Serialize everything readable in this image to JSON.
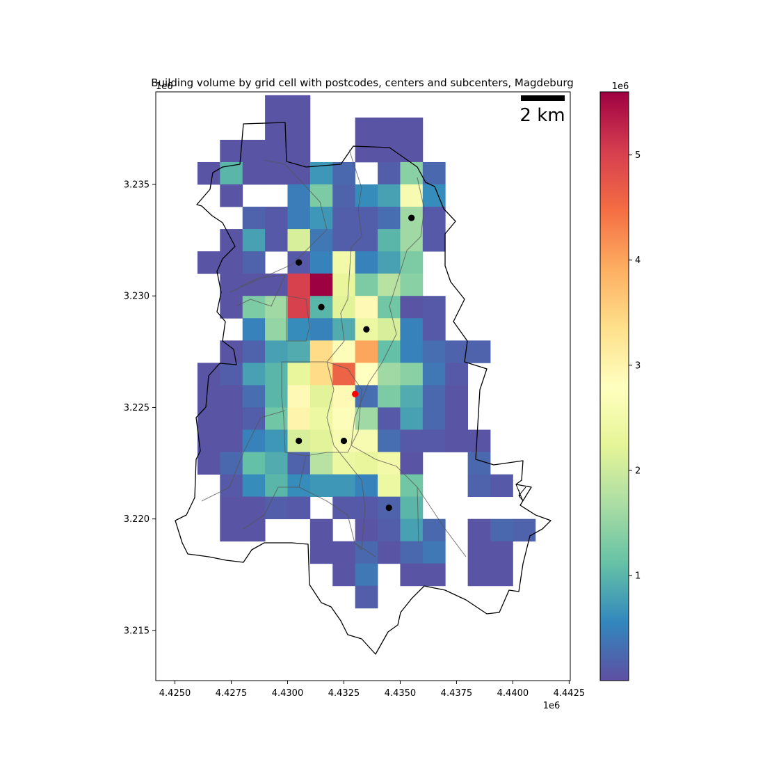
{
  "chart_data": {
    "type": "heatmap",
    "title": "Building volume by grid cell with postcodes, centers and subcenters, Magdeburg",
    "xlabel": "",
    "ylabel": "",
    "x_offset_label": "1e6",
    "y_offset_label": "1e6",
    "xlim": [
      4.42415,
      4.44255
    ],
    "ylim": [
      3.21275,
      3.23915
    ],
    "x_ticks": [
      {
        "value": 4.425,
        "label": "4.4250"
      },
      {
        "value": 4.4275,
        "label": "4.4275"
      },
      {
        "value": 4.43,
        "label": "4.4300"
      },
      {
        "value": 4.4325,
        "label": "4.4325"
      },
      {
        "value": 4.435,
        "label": "4.4350"
      },
      {
        "value": 4.4375,
        "label": "4.4375"
      },
      {
        "value": 4.44,
        "label": "4.4400"
      },
      {
        "value": 4.4425,
        "label": "4.4425"
      }
    ],
    "y_ticks": [
      {
        "value": 3.215,
        "label": "3.215"
      },
      {
        "value": 3.22,
        "label": "3.220"
      },
      {
        "value": 3.225,
        "label": "3.225"
      },
      {
        "value": 3.23,
        "label": "3.230"
      },
      {
        "value": 3.235,
        "label": "3.235"
      }
    ],
    "grid": false,
    "cell_size": 0.001,
    "grid_origin": {
      "x": 4.426,
      "y": 3.215
    },
    "values": [
      {
        "row": 23,
        "cols": [
          {
            "c": 3,
            "v": 0.05
          },
          {
            "c": 4,
            "v": 0.05
          }
        ]
      },
      {
        "row": 22,
        "cols": [
          {
            "c": 3,
            "v": 0.05
          },
          {
            "c": 4,
            "v": 0.05
          },
          {
            "c": 7,
            "v": 0.05
          },
          {
            "c": 8,
            "v": 0.05
          },
          {
            "c": 9,
            "v": 0.05
          }
        ]
      },
      {
        "row": 21,
        "cols": [
          {
            "c": 1,
            "v": 0.05
          },
          {
            "c": 2,
            "v": 0.05
          },
          {
            "c": 3,
            "v": 0.05
          },
          {
            "c": 4,
            "v": 0.05
          },
          {
            "c": 7,
            "v": 0.05
          },
          {
            "c": 8,
            "v": 0.05
          },
          {
            "c": 9,
            "v": 0.05
          }
        ]
      },
      {
        "row": 20,
        "cols": [
          {
            "c": 0,
            "v": 0.05
          },
          {
            "c": 1,
            "v": 1.0
          },
          {
            "c": 2,
            "v": 0.05
          },
          {
            "c": 3,
            "v": 0.05
          },
          {
            "c": 4,
            "v": 0.05
          },
          {
            "c": 5,
            "v": 0.7
          },
          {
            "c": 6,
            "v": 0.25
          },
          {
            "c": 8,
            "v": 0.15
          },
          {
            "c": 9,
            "v": 1.4
          },
          {
            "c": 10,
            "v": 0.25
          }
        ]
      },
      {
        "row": 19,
        "cols": [
          {
            "c": 1,
            "v": 0.05
          },
          {
            "c": 4,
            "v": 0.45
          },
          {
            "c": 5,
            "v": 1.3
          },
          {
            "c": 6,
            "v": 0.2
          },
          {
            "c": 7,
            "v": 0.6
          },
          {
            "c": 8,
            "v": 0.8
          },
          {
            "c": 9,
            "v": 2.6
          },
          {
            "c": 10,
            "v": 0.6
          }
        ]
      },
      {
        "row": 18,
        "cols": [
          {
            "c": 2,
            "v": 0.2
          },
          {
            "c": 3,
            "v": 0.1
          },
          {
            "c": 4,
            "v": 0.45
          },
          {
            "c": 5,
            "v": 0.7
          },
          {
            "c": 6,
            "v": 0.15
          },
          {
            "c": 7,
            "v": 0.15
          },
          {
            "c": 8,
            "v": 0.3
          },
          {
            "c": 9,
            "v": 1.6
          },
          {
            "c": 10,
            "v": 0.1
          }
        ]
      },
      {
        "row": 17,
        "cols": [
          {
            "c": 1,
            "v": 0.05
          },
          {
            "c": 2,
            "v": 0.8
          },
          {
            "c": 3,
            "v": 0.1
          },
          {
            "c": 4,
            "v": 2.1
          },
          {
            "c": 5,
            "v": 0.4
          },
          {
            "c": 6,
            "v": 0.15
          },
          {
            "c": 7,
            "v": 0.15
          },
          {
            "c": 8,
            "v": 1.0
          },
          {
            "c": 9,
            "v": 1.6
          },
          {
            "c": 10,
            "v": 0.1
          }
        ]
      },
      {
        "row": 16,
        "cols": [
          {
            "c": 0,
            "v": 0.05
          },
          {
            "c": 1,
            "v": 0.05
          },
          {
            "c": 2,
            "v": 0.2
          },
          {
            "c": 4,
            "v": 0.1
          },
          {
            "c": 5,
            "v": 0.5
          },
          {
            "c": 6,
            "v": 2.5
          },
          {
            "c": 7,
            "v": 0.5
          },
          {
            "c": 8,
            "v": 0.8
          },
          {
            "c": 9,
            "v": 1.3
          }
        ]
      },
      {
        "row": 15,
        "cols": [
          {
            "c": 1,
            "v": 0.05
          },
          {
            "c": 2,
            "v": 0.05
          },
          {
            "c": 3,
            "v": 0.05
          },
          {
            "c": 4,
            "v": 5.0
          },
          {
            "c": 5,
            "v": 5.6
          },
          {
            "c": 6,
            "v": 2.3
          },
          {
            "c": 7,
            "v": 1.3
          },
          {
            "c": 8,
            "v": 1.8
          },
          {
            "c": 9,
            "v": 1.4
          }
        ]
      },
      {
        "row": 14,
        "cols": [
          {
            "c": 1,
            "v": 0.05
          },
          {
            "c": 2,
            "v": 1.3
          },
          {
            "c": 3,
            "v": 1.6
          },
          {
            "c": 4,
            "v": 5.0
          },
          {
            "c": 5,
            "v": 1.0
          },
          {
            "c": 6,
            "v": 2.2
          },
          {
            "c": 7,
            "v": 2.9
          },
          {
            "c": 8,
            "v": 1.2
          },
          {
            "c": 9,
            "v": 0.05
          },
          {
            "c": 10,
            "v": 0.1
          }
        ]
      },
      {
        "row": 13,
        "cols": [
          {
            "c": 2,
            "v": 0.5
          },
          {
            "c": 3,
            "v": 1.5
          },
          {
            "c": 4,
            "v": 0.6
          },
          {
            "c": 5,
            "v": 0.5
          },
          {
            "c": 6,
            "v": 0.9
          },
          {
            "c": 7,
            "v": 2.4
          },
          {
            "c": 8,
            "v": 2.1
          },
          {
            "c": 9,
            "v": 0.5
          },
          {
            "c": 10,
            "v": 0.1
          }
        ]
      },
      {
        "row": 12,
        "cols": [
          {
            "c": 1,
            "v": 0.05
          },
          {
            "c": 2,
            "v": 0.2
          },
          {
            "c": 3,
            "v": 0.8
          },
          {
            "c": 4,
            "v": 0.9
          },
          {
            "c": 5,
            "v": 3.4
          },
          {
            "c": 6,
            "v": 2.7
          },
          {
            "c": 7,
            "v": 4.0
          },
          {
            "c": 8,
            "v": 1.1
          },
          {
            "c": 9,
            "v": 0.5
          },
          {
            "c": 10,
            "v": 0.3
          },
          {
            "c": 11,
            "v": 0.2
          },
          {
            "c": 12,
            "v": 0.2
          }
        ]
      },
      {
        "row": 11,
        "cols": [
          {
            "c": 0,
            "v": 0.05
          },
          {
            "c": 1,
            "v": 0.15
          },
          {
            "c": 2,
            "v": 0.8
          },
          {
            "c": 3,
            "v": 1.0
          },
          {
            "c": 4,
            "v": 2.3
          },
          {
            "c": 5,
            "v": 3.4
          },
          {
            "c": 6,
            "v": 4.6
          },
          {
            "c": 7,
            "v": 2.8
          },
          {
            "c": 8,
            "v": 1.6
          },
          {
            "c": 9,
            "v": 1.4
          },
          {
            "c": 10,
            "v": 0.4
          },
          {
            "c": 11,
            "v": 0.1
          }
        ]
      },
      {
        "row": 10,
        "cols": [
          {
            "c": 0,
            "v": 0.05
          },
          {
            "c": 1,
            "v": 0.05
          },
          {
            "c": 2,
            "v": 0.3
          },
          {
            "c": 3,
            "v": 1.0
          },
          {
            "c": 4,
            "v": 2.9
          },
          {
            "c": 5,
            "v": 2.2
          },
          {
            "c": 6,
            "v": 2.9
          },
          {
            "c": 7,
            "v": 0.3
          },
          {
            "c": 8,
            "v": 1.3
          },
          {
            "c": 9,
            "v": 0.9
          },
          {
            "c": 10,
            "v": 0.25
          },
          {
            "c": 11,
            "v": 0.05
          }
        ]
      },
      {
        "row": 9,
        "cols": [
          {
            "c": 0,
            "v": 0.05
          },
          {
            "c": 1,
            "v": 0.05
          },
          {
            "c": 2,
            "v": 0.15
          },
          {
            "c": 3,
            "v": 1.2
          },
          {
            "c": 4,
            "v": 3.0
          },
          {
            "c": 5,
            "v": 2.4
          },
          {
            "c": 6,
            "v": 2.7
          },
          {
            "c": 7,
            "v": 1.6
          },
          {
            "c": 8,
            "v": 0.1
          },
          {
            "c": 9,
            "v": 0.8
          },
          {
            "c": 10,
            "v": 0.25
          },
          {
            "c": 11,
            "v": 0.05
          }
        ]
      },
      {
        "row": 8,
        "cols": [
          {
            "c": 0,
            "v": 0.05
          },
          {
            "c": 1,
            "v": 0.05
          },
          {
            "c": 2,
            "v": 0.5
          },
          {
            "c": 3,
            "v": 0.7
          },
          {
            "c": 4,
            "v": 2.1
          },
          {
            "c": 5,
            "v": 2.2
          },
          {
            "c": 6,
            "v": 2.6
          },
          {
            "c": 7,
            "v": 2.6
          },
          {
            "c": 8,
            "v": 0.3
          },
          {
            "c": 9,
            "v": 0.1
          },
          {
            "c": 10,
            "v": 0.1
          },
          {
            "c": 11,
            "v": 0.05
          },
          {
            "c": 12,
            "v": 0.05
          }
        ]
      },
      {
        "row": 7,
        "cols": [
          {
            "c": 0,
            "v": 0.05
          },
          {
            "c": 1,
            "v": 0.25
          },
          {
            "c": 2,
            "v": 1.1
          },
          {
            "c": 3,
            "v": 0.9
          },
          {
            "c": 4,
            "v": 0.2
          },
          {
            "c": 5,
            "v": 1.8
          },
          {
            "c": 6,
            "v": 2.4
          },
          {
            "c": 7,
            "v": 2.3
          },
          {
            "c": 8,
            "v": 2.5
          },
          {
            "c": 9,
            "v": 0.05
          },
          {
            "c": 12,
            "v": 0.25
          }
        ]
      },
      {
        "row": 6,
        "cols": [
          {
            "c": 1,
            "v": 0.1
          },
          {
            "c": 2,
            "v": 0.6
          },
          {
            "c": 3,
            "v": 1.0
          },
          {
            "c": 4,
            "v": 0.6
          },
          {
            "c": 5,
            "v": 0.7
          },
          {
            "c": 6,
            "v": 0.7
          },
          {
            "c": 7,
            "v": 0.5
          },
          {
            "c": 8,
            "v": 2.4
          },
          {
            "c": 9,
            "v": 1.2
          },
          {
            "c": 12,
            "v": 0.2
          },
          {
            "c": 13,
            "v": 0.1
          }
        ]
      },
      {
        "row": 5,
        "cols": [
          {
            "c": 1,
            "v": 0.05
          },
          {
            "c": 2,
            "v": 0.05
          },
          {
            "c": 3,
            "v": 0.15
          },
          {
            "c": 4,
            "v": 0.1
          },
          {
            "c": 6,
            "v": 0.1
          },
          {
            "c": 7,
            "v": 0.1
          },
          {
            "c": 8,
            "v": 0.2
          },
          {
            "c": 9,
            "v": 1.0
          }
        ]
      },
      {
        "row": 4,
        "cols": [
          {
            "c": 1,
            "v": 0.05
          },
          {
            "c": 2,
            "v": 0.05
          },
          {
            "c": 5,
            "v": 0.05
          },
          {
            "c": 7,
            "v": 0.05
          },
          {
            "c": 8,
            "v": 0.15
          },
          {
            "c": 9,
            "v": 0.8
          },
          {
            "c": 10,
            "v": 0.25
          },
          {
            "c": 12,
            "v": 0.05
          },
          {
            "c": 13,
            "v": 0.25
          },
          {
            "c": 14,
            "v": 0.2
          }
        ]
      },
      {
        "row": 3,
        "cols": [
          {
            "c": 5,
            "v": 0.05
          },
          {
            "c": 6,
            "v": 0.05
          },
          {
            "c": 7,
            "v": 0.25
          },
          {
            "c": 8,
            "v": 0.05
          },
          {
            "c": 9,
            "v": 0.25
          },
          {
            "c": 10,
            "v": 0.4
          },
          {
            "c": 12,
            "v": 0.05
          },
          {
            "c": 13,
            "v": 0.05
          }
        ]
      },
      {
        "row": 2,
        "cols": [
          {
            "c": 6,
            "v": 0.05
          },
          {
            "c": 7,
            "v": 0.4
          },
          {
            "c": 9,
            "v": 0.05
          },
          {
            "c": 10,
            "v": 0.05
          },
          {
            "c": 12,
            "v": 0.05
          },
          {
            "c": 13,
            "v": 0.05
          }
        ]
      },
      {
        "row": 1,
        "cols": [
          {
            "c": 7,
            "v": 0.15
          }
        ]
      }
    ],
    "subcenters": [
      {
        "x": 4.4355,
        "y": 3.2335
      },
      {
        "x": 4.4305,
        "y": 3.2315
      },
      {
        "x": 4.4315,
        "y": 3.2295
      },
      {
        "x": 4.4335,
        "y": 3.2285
      },
      {
        "x": 4.4305,
        "y": 3.2235
      },
      {
        "x": 4.4325,
        "y": 3.2235
      },
      {
        "x": 4.4345,
        "y": 3.2205
      }
    ],
    "center": {
      "x": 4.433,
      "y": 3.2256
    },
    "colorbar": {
      "colormap": "Spectral_r",
      "vmin": 0.0,
      "vmax": 5.6,
      "ticks": [
        {
          "value": 1,
          "label": "1"
        },
        {
          "value": 2,
          "label": "2"
        },
        {
          "value": 3,
          "label": "3"
        },
        {
          "value": 4,
          "label": "4"
        },
        {
          "value": 5,
          "label": "5"
        }
      ],
      "offset_label": "1e6"
    },
    "scalebar_label": "2 km",
    "colors": {
      "subcenter_marker": "#000000",
      "center_marker": "#ff0000",
      "boundary": "#000000",
      "postcode_boundary": "#555555"
    }
  }
}
